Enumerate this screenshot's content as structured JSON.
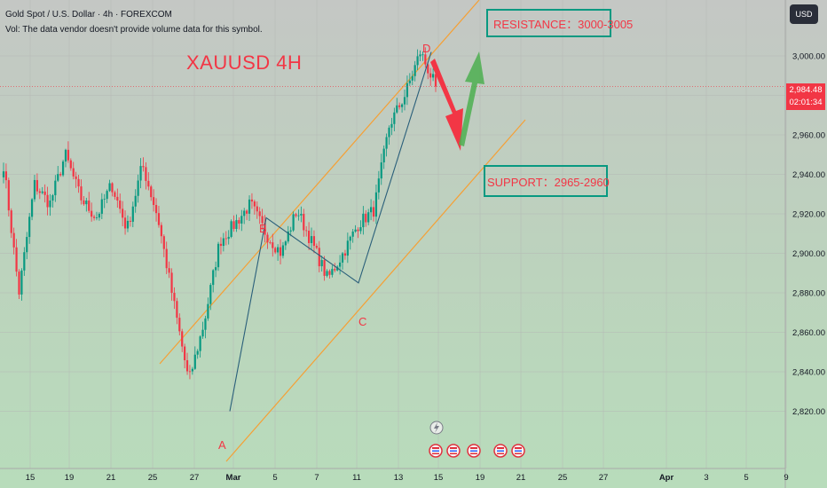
{
  "header": {
    "symbol_line": "Gold Spot / U.S. Dollar · 4h · FOREXCOM",
    "volume_note": "Vol: The data vendor doesn't provide volume data for this symbol."
  },
  "currency_button": "USD",
  "current_price": {
    "value": "2,984.48",
    "countdown": "02:01:34"
  },
  "main_label": "XAUUSD 4H",
  "resistance_label": "RESISTANCE：3000-3005",
  "support_label": "SUPPORT：2965-2960",
  "wave_points": [
    {
      "label": "A",
      "price": 2820
    },
    {
      "label": "B",
      "price": 2918
    },
    {
      "label": "C",
      "price": 2885
    },
    {
      "label": "D",
      "price": 3002
    }
  ],
  "colors": {
    "bull": "#089981",
    "bear": "#f23645",
    "channel": "#f5a035",
    "wave_line": "#2a5f7a",
    "forecast_down": "#f23645",
    "forecast_up": "#4caf50"
  },
  "chart_data": {
    "type": "candlestick",
    "y_axis": {
      "ticks": [
        "3,000.00",
        "2,980.00",
        "2,960.00",
        "2,940.00",
        "2,920.00",
        "2,900.00",
        "2,880.00",
        "2,860.00",
        "2,840.00",
        "2,820.00"
      ],
      "tick_values": [
        3000,
        2980,
        2960,
        2940,
        2920,
        2900,
        2880,
        2860,
        2840,
        2820
      ]
    },
    "x_axis": {
      "ticks": [
        "15",
        "19",
        "21",
        "25",
        "27",
        "Mar",
        "5",
        "7",
        "11",
        "13",
        "15",
        "19",
        "21",
        "25",
        "27",
        "Apr",
        "3",
        "5",
        "9"
      ]
    },
    "current_price": 2984.48,
    "key_prices": [
      2945,
      2880,
      2935,
      2925,
      2950,
      2928,
      2918,
      2935,
      2912,
      2945,
      2918,
      2876,
      2835,
      2865,
      2906,
      2915,
      2925,
      2910,
      2900,
      2922,
      2905,
      2887,
      2900,
      2915,
      2922,
      2965,
      2980,
      3002,
      2984.48
    ]
  }
}
